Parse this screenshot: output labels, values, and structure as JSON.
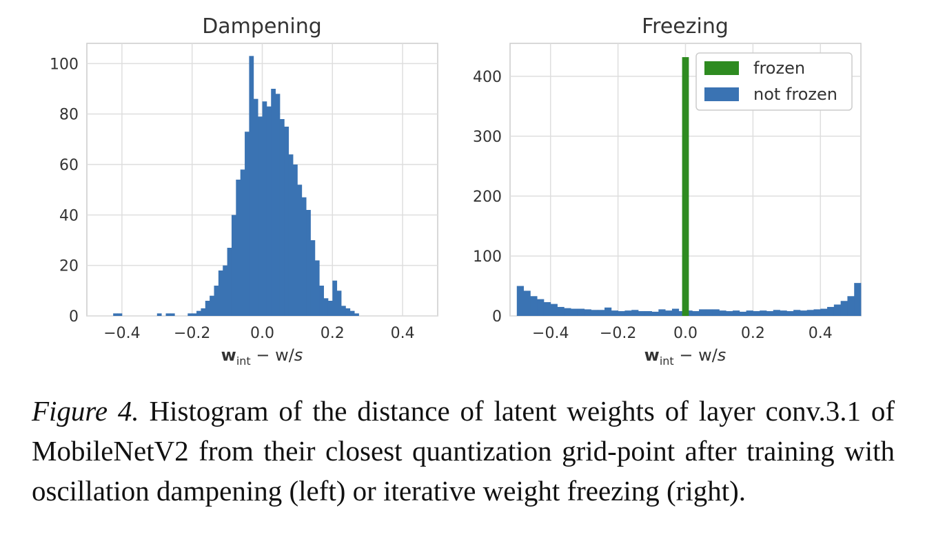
{
  "chart_data": [
    {
      "type": "bar",
      "title": "Dampening",
      "xlabel_main": "w",
      "xlabel_sub": "int",
      "xlabel_rest": " − w/",
      "xlabel_s": "s",
      "xlim": [
        -0.5,
        0.5
      ],
      "ylim": [
        0,
        108
      ],
      "xticks": [
        -0.4,
        -0.2,
        0.0,
        0.2,
        0.4
      ],
      "xtick_labels": [
        "−0.4",
        "−0.2",
        "0.0",
        "0.2",
        "0.4"
      ],
      "yticks": [
        0,
        20,
        40,
        60,
        80,
        100
      ],
      "ytick_labels": [
        "0",
        "20",
        "40",
        "60",
        "80",
        "100"
      ],
      "color": "#3a73b3",
      "bin_start": -0.5,
      "bin_width": 0.0125,
      "series": [
        {
          "name": "counts",
          "values": [
            0,
            0,
            0,
            0,
            0,
            0,
            1,
            1,
            0,
            0,
            0,
            0,
            0,
            0,
            0,
            0,
            1,
            0,
            1,
            1,
            0,
            0,
            0,
            1,
            1,
            2,
            3,
            6,
            8,
            12,
            18,
            20,
            27,
            40,
            54,
            58,
            73,
            103,
            86,
            79,
            85,
            83,
            90,
            88,
            78,
            75,
            64,
            60,
            52,
            47,
            42,
            30,
            22,
            12,
            7,
            6,
            14,
            10,
            4,
            3,
            2,
            1,
            0,
            0,
            0,
            0,
            0,
            0,
            0,
            0,
            0,
            0,
            0,
            0,
            0,
            0,
            0,
            0,
            0,
            0
          ]
        }
      ]
    },
    {
      "type": "bar",
      "title": "Freezing",
      "xlabel_main": "w",
      "xlabel_sub": "int",
      "xlabel_rest": " − w/",
      "xlabel_s": "s",
      "xlim": [
        -0.52,
        0.52
      ],
      "ylim": [
        0,
        455
      ],
      "xticks": [
        -0.4,
        -0.2,
        0.0,
        0.2,
        0.4
      ],
      "xtick_labels": [
        "−0.4",
        "−0.2",
        "0.0",
        "0.2",
        "0.4"
      ],
      "yticks": [
        0,
        100,
        200,
        300,
        400
      ],
      "ytick_labels": [
        "0",
        "100",
        "200",
        "300",
        "400"
      ],
      "legend_position": "top-right",
      "bin_start": -0.5,
      "bin_width": 0.02,
      "series": [
        {
          "name": "not frozen",
          "color": "#3a73b3",
          "values": [
            50,
            42,
            33,
            28,
            23,
            20,
            15,
            13,
            12,
            12,
            11,
            10,
            10,
            14,
            9,
            8,
            9,
            10,
            8,
            8,
            7,
            11,
            9,
            12,
            8,
            9,
            8,
            11,
            11,
            11,
            9,
            8,
            9,
            7,
            9,
            8,
            9,
            8,
            10,
            9,
            8,
            10,
            9,
            10,
            11,
            12,
            15,
            19,
            25,
            33,
            55
          ]
        },
        {
          "name": "frozen",
          "color": "#2e8b20",
          "x": 0.0,
          "value": 432,
          "width": 0.02
        }
      ]
    }
  ],
  "caption": {
    "label": "Figure 4.",
    "text": " Histogram of the distance of latent weights of layer conv.3.1 of MobileNetV2 from their closest quantization grid-point after training with oscillation dampening (left) or iterative weight freezing (right)."
  }
}
